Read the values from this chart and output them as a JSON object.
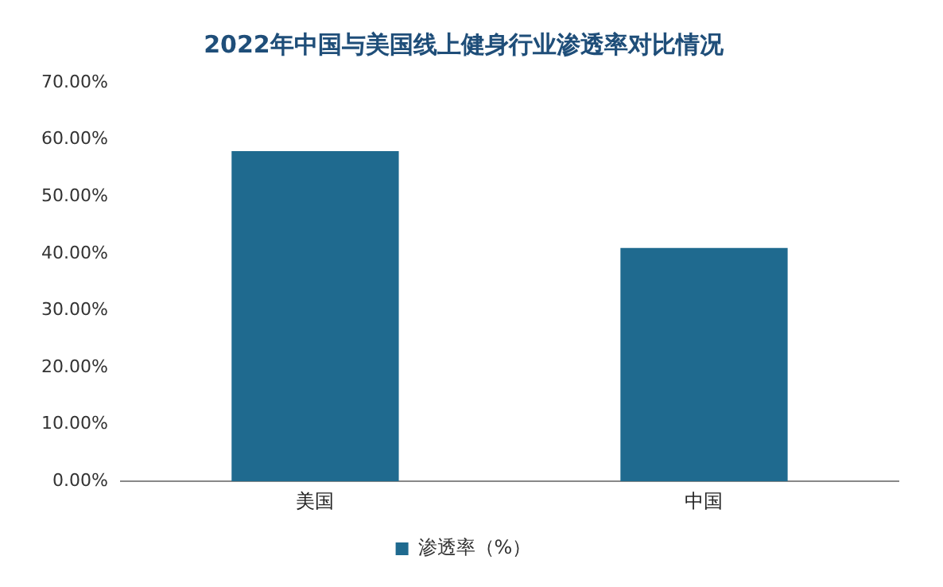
{
  "chart_data": {
    "type": "bar",
    "title": "2022年中国与美国线上健身行业渗透率对比情况",
    "categories": [
      "美国",
      "中国"
    ],
    "series": [
      {
        "name": "渗透率（%）",
        "color": "#1f6a8f",
        "values": [
          58,
          41
        ]
      }
    ],
    "ylim": [
      0,
      70
    ],
    "yticks": [
      {
        "value": 0,
        "label": "0.00%"
      },
      {
        "value": 10,
        "label": "10.00%"
      },
      {
        "value": 20,
        "label": "20.00%"
      },
      {
        "value": 30,
        "label": "30.00%"
      },
      {
        "value": 40,
        "label": "40.00%"
      },
      {
        "value": 50,
        "label": "50.00%"
      },
      {
        "value": 60,
        "label": "60.00%"
      },
      {
        "value": 70,
        "label": "70.00%"
      }
    ],
    "grid": false,
    "legend": "bottom"
  }
}
